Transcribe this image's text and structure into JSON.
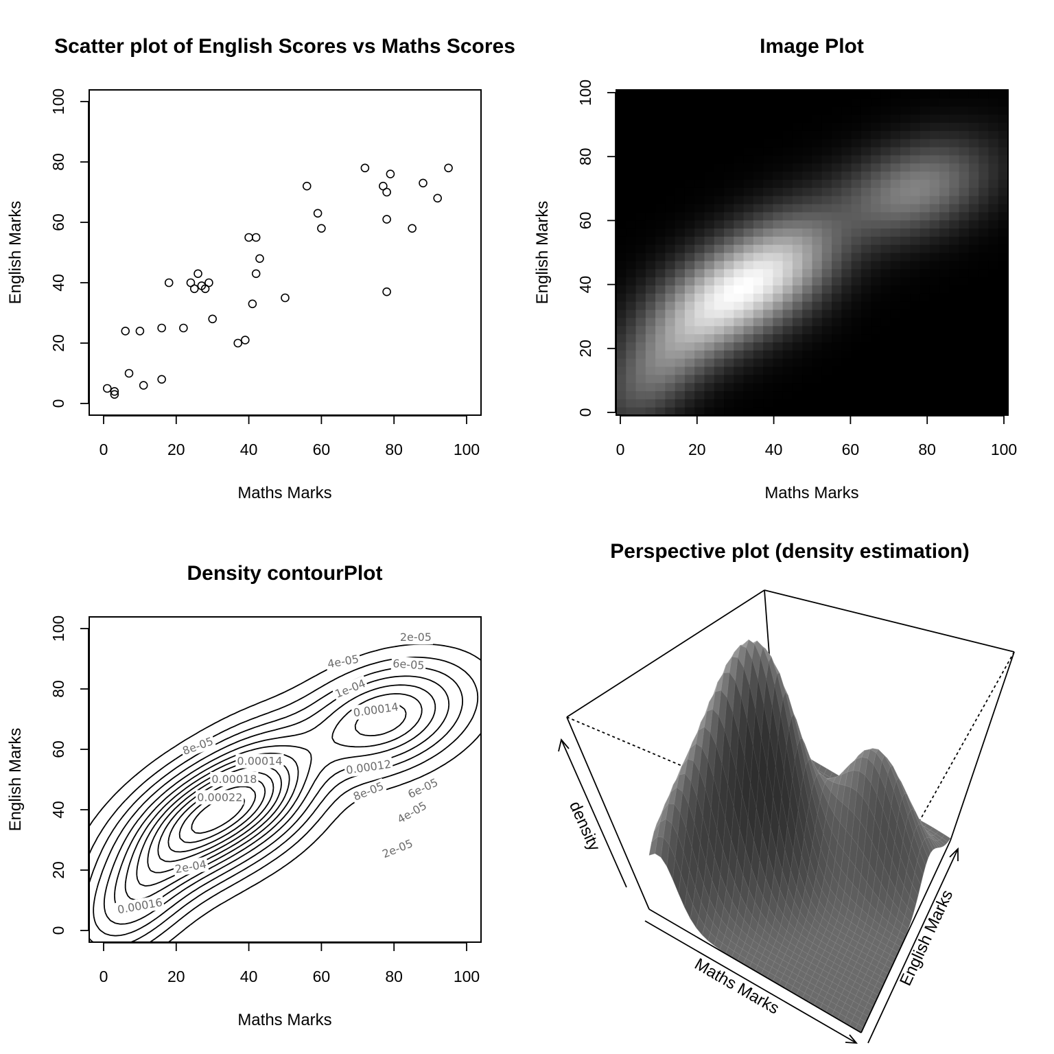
{
  "chart_data": [
    {
      "type": "scatter",
      "title": "Scatter plot of English Scores vs Maths Scores",
      "xlabel": "Maths Marks",
      "ylabel": "English Marks",
      "xlim": [
        0,
        100
      ],
      "ylim": [
        0,
        100
      ],
      "xticks": [
        "0",
        "20",
        "40",
        "60",
        "80",
        "100"
      ],
      "yticks": [
        "0",
        "20",
        "40",
        "60",
        "80",
        "100"
      ],
      "points": [
        [
          1,
          5
        ],
        [
          3,
          4
        ],
        [
          3,
          3
        ],
        [
          6,
          24
        ],
        [
          7,
          10
        ],
        [
          10,
          24
        ],
        [
          11,
          6
        ],
        [
          16,
          25
        ],
        [
          16,
          8
        ],
        [
          18,
          40
        ],
        [
          22,
          25
        ],
        [
          24,
          40
        ],
        [
          25,
          38
        ],
        [
          26,
          43
        ],
        [
          27,
          39
        ],
        [
          28,
          38
        ],
        [
          29,
          40
        ],
        [
          30,
          28
        ],
        [
          37,
          20
        ],
        [
          39,
          21
        ],
        [
          40,
          55
        ],
        [
          41,
          33
        ],
        [
          42,
          55
        ],
        [
          42,
          43
        ],
        [
          43,
          48
        ],
        [
          50,
          35
        ],
        [
          56,
          72
        ],
        [
          59,
          63
        ],
        [
          60,
          58
        ],
        [
          72,
          78
        ],
        [
          77,
          72
        ],
        [
          78,
          70
        ],
        [
          78,
          61
        ],
        [
          78,
          37
        ],
        [
          79,
          76
        ],
        [
          85,
          58
        ],
        [
          88,
          73
        ],
        [
          92,
          68
        ],
        [
          95,
          78
        ]
      ]
    },
    {
      "type": "heatmap",
      "title": "Image Plot",
      "xlabel": "Maths Marks",
      "ylabel": "English Marks",
      "xlim": [
        0,
        100
      ],
      "ylim": [
        0,
        100
      ],
      "xticks": [
        "0",
        "20",
        "40",
        "60",
        "80",
        "100"
      ],
      "yticks": [
        "0",
        "20",
        "40",
        "60",
        "80",
        "100"
      ],
      "colormap": "grayscale (black = low density, white = high density)",
      "density_modes": [
        {
          "x": 29,
          "y": 37,
          "weight": 1.0
        },
        {
          "x": 77,
          "y": 70,
          "weight": 0.55
        }
      ]
    },
    {
      "type": "contour",
      "title": "Density contourPlot",
      "xlabel": "Maths Marks",
      "ylabel": "English Marks",
      "xlim": [
        0,
        100
      ],
      "ylim": [
        0,
        100
      ],
      "xticks": [
        "0",
        "20",
        "40",
        "60",
        "80",
        "100"
      ],
      "yticks": [
        "0",
        "20",
        "40",
        "60",
        "80",
        "100"
      ],
      "contour_labels": [
        {
          "text": "2e-05",
          "x": 86,
          "y": 97,
          "angle": 0
        },
        {
          "text": "4e-05",
          "x": 66,
          "y": 89,
          "angle": -10
        },
        {
          "text": "6e-05",
          "x": 84,
          "y": 88,
          "angle": 4
        },
        {
          "text": "1e-04",
          "x": 68,
          "y": 80,
          "angle": -22
        },
        {
          "text": "0.00014",
          "x": 75,
          "y": 73,
          "angle": -8
        },
        {
          "text": "8e-05",
          "x": 26,
          "y": 61,
          "angle": -20
        },
        {
          "text": "0.00014",
          "x": 43,
          "y": 56,
          "angle": 0
        },
        {
          "text": "0.00012",
          "x": 73,
          "y": 54,
          "angle": -8
        },
        {
          "text": "0.00018",
          "x": 36,
          "y": 50,
          "angle": 0
        },
        {
          "text": "8e-05",
          "x": 73,
          "y": 46,
          "angle": -22
        },
        {
          "text": "6e-05",
          "x": 88,
          "y": 47,
          "angle": -25
        },
        {
          "text": "0.00022",
          "x": 32,
          "y": 44,
          "angle": 0
        },
        {
          "text": "4e-05",
          "x": 85,
          "y": 39,
          "angle": -30
        },
        {
          "text": "2e-04",
          "x": 24,
          "y": 21,
          "angle": -10
        },
        {
          "text": "2e-05",
          "x": 81,
          "y": 27,
          "angle": -22
        },
        {
          "text": "0.00016",
          "x": 10,
          "y": 8,
          "angle": -10
        }
      ]
    },
    {
      "type": "surface",
      "title": "Perspective plot (density estimation)",
      "xlabel": "Maths Marks",
      "ylabel": "English Marks",
      "zlabel": "density"
    }
  ]
}
